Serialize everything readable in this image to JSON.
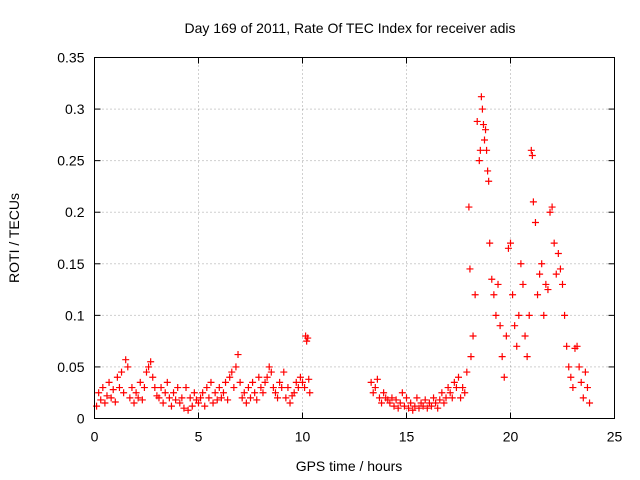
{
  "chart_data": {
    "type": "scatter",
    "title": "Day 169 of 2011, Rate Of TEC Index for receiver adis",
    "xlabel": "GPS time / hours",
    "ylabel": "ROTI / TECUs",
    "xlim": [
      0,
      25
    ],
    "ylim": [
      0,
      0.35
    ],
    "xticks": [
      0,
      5,
      10,
      15,
      20,
      25
    ],
    "yticks": [
      0,
      0.05,
      0.1,
      0.15,
      0.2,
      0.25,
      0.3,
      0.35
    ],
    "xtick_labels": [
      "0",
      "5",
      "10",
      "15",
      "20",
      "25"
    ],
    "ytick_labels": [
      "0",
      "0.05",
      "0.1",
      "0.15",
      "0.2",
      "0.25",
      "0.3",
      "0.35"
    ],
    "grid": true,
    "marker": "+",
    "color": "#ff0000",
    "series": [
      {
        "name": "ROTI",
        "points": [
          [
            0.1,
            0.012
          ],
          [
            0.2,
            0.025
          ],
          [
            0.3,
            0.018
          ],
          [
            0.4,
            0.03
          ],
          [
            0.5,
            0.015
          ],
          [
            0.6,
            0.022
          ],
          [
            0.7,
            0.035
          ],
          [
            0.8,
            0.02
          ],
          [
            0.9,
            0.028
          ],
          [
            1.0,
            0.016
          ],
          [
            1.1,
            0.04
          ],
          [
            1.2,
            0.03
          ],
          [
            1.3,
            0.045
          ],
          [
            1.4,
            0.025
          ],
          [
            1.5,
            0.057
          ],
          [
            1.6,
            0.05
          ],
          [
            1.7,
            0.02
          ],
          [
            1.8,
            0.03
          ],
          [
            1.9,
            0.015
          ],
          [
            2.0,
            0.025
          ],
          [
            2.1,
            0.02
          ],
          [
            2.2,
            0.035
          ],
          [
            2.3,
            0.018
          ],
          [
            2.4,
            0.03
          ],
          [
            2.5,
            0.045
          ],
          [
            2.6,
            0.05
          ],
          [
            2.7,
            0.055
          ],
          [
            2.8,
            0.04
          ],
          [
            2.9,
            0.03
          ],
          [
            3.0,
            0.022
          ],
          [
            3.1,
            0.02
          ],
          [
            3.2,
            0.03
          ],
          [
            3.3,
            0.015
          ],
          [
            3.4,
            0.025
          ],
          [
            3.5,
            0.035
          ],
          [
            3.6,
            0.02
          ],
          [
            3.7,
            0.012
          ],
          [
            3.8,
            0.025
          ],
          [
            3.9,
            0.018
          ],
          [
            4.0,
            0.03
          ],
          [
            4.1,
            0.015
          ],
          [
            4.2,
            0.02
          ],
          [
            4.3,
            0.01
          ],
          [
            4.4,
            0.03
          ],
          [
            4.5,
            0.008
          ],
          [
            4.6,
            0.02
          ],
          [
            4.7,
            0.012
          ],
          [
            4.8,
            0.025
          ],
          [
            4.9,
            0.018
          ],
          [
            5.0,
            0.015
          ],
          [
            5.1,
            0.02
          ],
          [
            5.2,
            0.025
          ],
          [
            5.3,
            0.012
          ],
          [
            5.4,
            0.03
          ],
          [
            5.5,
            0.02
          ],
          [
            5.6,
            0.035
          ],
          [
            5.7,
            0.015
          ],
          [
            5.8,
            0.025
          ],
          [
            5.9,
            0.018
          ],
          [
            6.0,
            0.03
          ],
          [
            6.1,
            0.02
          ],
          [
            6.2,
            0.025
          ],
          [
            6.3,
            0.035
          ],
          [
            6.4,
            0.018
          ],
          [
            6.5,
            0.04
          ],
          [
            6.6,
            0.045
          ],
          [
            6.7,
            0.03
          ],
          [
            6.8,
            0.05
          ],
          [
            6.9,
            0.062
          ],
          [
            7.0,
            0.035
          ],
          [
            7.1,
            0.02
          ],
          [
            7.2,
            0.025
          ],
          [
            7.3,
            0.015
          ],
          [
            7.4,
            0.03
          ],
          [
            7.5,
            0.02
          ],
          [
            7.6,
            0.035
          ],
          [
            7.7,
            0.025
          ],
          [
            7.8,
            0.018
          ],
          [
            7.9,
            0.04
          ],
          [
            8.0,
            0.03
          ],
          [
            8.1,
            0.025
          ],
          [
            8.2,
            0.035
          ],
          [
            8.3,
            0.04
          ],
          [
            8.4,
            0.05
          ],
          [
            8.5,
            0.045
          ],
          [
            8.6,
            0.03
          ],
          [
            8.7,
            0.025
          ],
          [
            8.8,
            0.02
          ],
          [
            8.9,
            0.035
          ],
          [
            9.0,
            0.03
          ],
          [
            9.1,
            0.045
          ],
          [
            9.2,
            0.02
          ],
          [
            9.3,
            0.03
          ],
          [
            9.4,
            0.015
          ],
          [
            9.5,
            0.022
          ],
          [
            9.6,
            0.025
          ],
          [
            9.7,
            0.035
          ],
          [
            9.8,
            0.03
          ],
          [
            9.9,
            0.04
          ],
          [
            10.0,
            0.035
          ],
          [
            10.1,
            0.03
          ],
          [
            10.15,
            0.08
          ],
          [
            10.2,
            0.075
          ],
          [
            10.25,
            0.078
          ],
          [
            10.3,
            0.038
          ],
          [
            10.35,
            0.025
          ],
          [
            13.3,
            0.035
          ],
          [
            13.4,
            0.025
          ],
          [
            13.5,
            0.03
          ],
          [
            13.6,
            0.038
          ],
          [
            13.7,
            0.02
          ],
          [
            13.8,
            0.015
          ],
          [
            13.9,
            0.025
          ],
          [
            14.0,
            0.02
          ],
          [
            14.1,
            0.018
          ],
          [
            14.2,
            0.015
          ],
          [
            14.3,
            0.02
          ],
          [
            14.4,
            0.012
          ],
          [
            14.5,
            0.018
          ],
          [
            14.6,
            0.01
          ],
          [
            14.7,
            0.015
          ],
          [
            14.8,
            0.025
          ],
          [
            14.9,
            0.012
          ],
          [
            15.0,
            0.02
          ],
          [
            15.1,
            0.01
          ],
          [
            15.2,
            0.015
          ],
          [
            15.3,
            0.008
          ],
          [
            15.4,
            0.012
          ],
          [
            15.5,
            0.02
          ],
          [
            15.6,
            0.01
          ],
          [
            15.7,
            0.015
          ],
          [
            15.8,
            0.012
          ],
          [
            15.9,
            0.018
          ],
          [
            16.0,
            0.01
          ],
          [
            16.1,
            0.015
          ],
          [
            16.2,
            0.012
          ],
          [
            16.3,
            0.02
          ],
          [
            16.4,
            0.015
          ],
          [
            16.5,
            0.01
          ],
          [
            16.6,
            0.018
          ],
          [
            16.7,
            0.025
          ],
          [
            16.8,
            0.015
          ],
          [
            16.9,
            0.02
          ],
          [
            17.0,
            0.03
          ],
          [
            17.1,
            0.025
          ],
          [
            17.2,
            0.02
          ],
          [
            17.3,
            0.035
          ],
          [
            17.4,
            0.03
          ],
          [
            17.5,
            0.04
          ],
          [
            17.6,
            0.02
          ],
          [
            17.7,
            0.03
          ],
          [
            17.8,
            0.025
          ],
          [
            17.9,
            0.045
          ],
          [
            18.0,
            0.205
          ],
          [
            18.05,
            0.145
          ],
          [
            18.1,
            0.06
          ],
          [
            18.2,
            0.08
          ],
          [
            18.3,
            0.12
          ],
          [
            18.4,
            0.288
          ],
          [
            18.5,
            0.25
          ],
          [
            18.55,
            0.26
          ],
          [
            18.6,
            0.312
          ],
          [
            18.65,
            0.3
          ],
          [
            18.7,
            0.285
          ],
          [
            18.75,
            0.27
          ],
          [
            18.8,
            0.28
          ],
          [
            18.85,
            0.26
          ],
          [
            18.9,
            0.24
          ],
          [
            18.95,
            0.23
          ],
          [
            19.0,
            0.17
          ],
          [
            19.1,
            0.135
          ],
          [
            19.2,
            0.12
          ],
          [
            19.3,
            0.1
          ],
          [
            19.4,
            0.13
          ],
          [
            19.5,
            0.09
          ],
          [
            19.6,
            0.06
          ],
          [
            19.7,
            0.04
          ],
          [
            19.8,
            0.08
          ],
          [
            19.9,
            0.165
          ],
          [
            20.0,
            0.17
          ],
          [
            20.1,
            0.12
          ],
          [
            20.2,
            0.09
          ],
          [
            20.3,
            0.07
          ],
          [
            20.4,
            0.1
          ],
          [
            20.5,
            0.15
          ],
          [
            20.6,
            0.13
          ],
          [
            20.7,
            0.08
          ],
          [
            20.8,
            0.06
          ],
          [
            20.9,
            0.1
          ],
          [
            21.0,
            0.26
          ],
          [
            21.05,
            0.255
          ],
          [
            21.1,
            0.21
          ],
          [
            21.2,
            0.19
          ],
          [
            21.3,
            0.12
          ],
          [
            21.4,
            0.14
          ],
          [
            21.5,
            0.15
          ],
          [
            21.6,
            0.1
          ],
          [
            21.7,
            0.13
          ],
          [
            21.8,
            0.125
          ],
          [
            21.9,
            0.2
          ],
          [
            22.0,
            0.205
          ],
          [
            22.1,
            0.17
          ],
          [
            22.2,
            0.14
          ],
          [
            22.3,
            0.16
          ],
          [
            22.4,
            0.145
          ],
          [
            22.5,
            0.13
          ],
          [
            22.6,
            0.1
          ],
          [
            22.7,
            0.07
          ],
          [
            22.8,
            0.05
          ],
          [
            22.9,
            0.04
          ],
          [
            23.0,
            0.03
          ],
          [
            23.1,
            0.068
          ],
          [
            23.2,
            0.07
          ],
          [
            23.3,
            0.05
          ],
          [
            23.4,
            0.035
          ],
          [
            23.5,
            0.02
          ],
          [
            23.6,
            0.045
          ],
          [
            23.7,
            0.03
          ],
          [
            23.8,
            0.015
          ]
        ]
      }
    ]
  }
}
